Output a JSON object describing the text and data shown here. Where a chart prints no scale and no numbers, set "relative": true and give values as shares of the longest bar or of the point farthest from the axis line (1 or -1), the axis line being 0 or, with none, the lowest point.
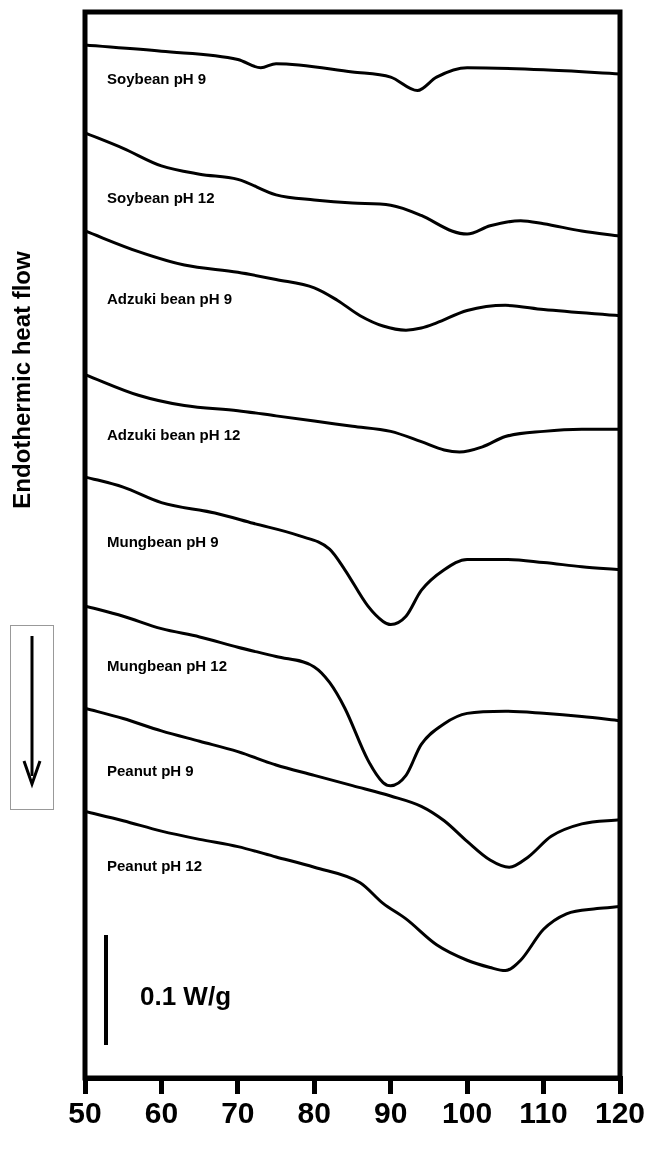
{
  "chart_data": {
    "type": "line",
    "ylabel": "Endothermic heat flow",
    "relative": true,
    "legend": false,
    "grid": false,
    "marker": "none",
    "xlim": [
      50,
      120
    ],
    "xticks": [
      50,
      60,
      70,
      80,
      90,
      100,
      110,
      120
    ],
    "annotations": [
      "0.1 W/g"
    ],
    "series": [
      {
        "name": "Soybean pH 9",
        "color": "#000000",
        "x": [
          50,
          60,
          70,
          73,
          75,
          85,
          90,
          93.5,
          96,
          100,
          110,
          120
        ],
        "values": [
          1.0,
          0.994,
          0.986,
          0.978,
          0.982,
          0.974,
          0.969,
          0.956,
          0.969,
          0.978,
          0.976,
          0.972
        ]
      },
      {
        "name": "Soybean pH 12",
        "color": "#000000",
        "x": [
          50,
          55,
          60,
          65,
          70,
          75,
          80,
          85,
          90,
          94,
          98,
          100,
          103,
          107,
          110,
          115,
          120
        ],
        "values": [
          0.915,
          0.9,
          0.883,
          0.875,
          0.87,
          0.855,
          0.85,
          0.847,
          0.845,
          0.835,
          0.82,
          0.817,
          0.825,
          0.83,
          0.827,
          0.82,
          0.815
        ]
      },
      {
        "name": "Adzuki bean pH 9",
        "color": "#000000",
        "x": [
          50,
          57,
          63,
          70,
          75,
          80,
          83,
          86,
          89,
          92,
          94,
          96,
          100,
          105,
          110,
          120
        ],
        "values": [
          0.82,
          0.8,
          0.787,
          0.78,
          0.773,
          0.765,
          0.753,
          0.738,
          0.728,
          0.724,
          0.726,
          0.731,
          0.743,
          0.748,
          0.744,
          0.738
        ]
      },
      {
        "name": "Adzuki bean pH 12",
        "color": "#000000",
        "x": [
          50,
          57,
          63,
          70,
          75,
          80,
          85,
          90,
          94,
          97,
          99,
          102,
          105,
          110,
          115,
          120
        ],
        "values": [
          0.681,
          0.661,
          0.651,
          0.646,
          0.641,
          0.636,
          0.631,
          0.626,
          0.616,
          0.608,
          0.606,
          0.611,
          0.621,
          0.626,
          0.628,
          0.628
        ]
      },
      {
        "name": "Mungbean pH 9",
        "color": "#000000",
        "x": [
          50,
          55,
          60,
          67,
          72,
          78,
          82,
          84,
          87,
          89,
          90,
          92,
          94,
          97,
          100,
          105,
          110,
          115,
          120
        ],
        "values": [
          0.582,
          0.572,
          0.557,
          0.547,
          0.537,
          0.525,
          0.512,
          0.492,
          0.457,
          0.442,
          0.439,
          0.447,
          0.472,
          0.492,
          0.502,
          0.502,
          0.499,
          0.495,
          0.492
        ]
      },
      {
        "name": "Mungbean pH 12",
        "color": "#000000",
        "x": [
          50,
          55,
          60,
          65,
          70,
          75,
          80,
          82,
          84,
          87,
          89,
          90,
          92,
          94,
          97,
          100,
          105,
          110,
          115,
          120
        ],
        "values": [
          0.457,
          0.447,
          0.435,
          0.427,
          0.417,
          0.408,
          0.398,
          0.383,
          0.358,
          0.308,
          0.286,
          0.283,
          0.293,
          0.323,
          0.343,
          0.353,
          0.355,
          0.353,
          0.35,
          0.346
        ]
      },
      {
        "name": "Peanut pH 9",
        "color": "#000000",
        "x": [
          50,
          55,
          60,
          65,
          70,
          75,
          80,
          85,
          90,
          94,
          97,
          100,
          103,
          105.5,
          108,
          111,
          115,
          120
        ],
        "values": [
          0.358,
          0.348,
          0.336,
          0.326,
          0.316,
          0.303,
          0.293,
          0.283,
          0.273,
          0.263,
          0.249,
          0.229,
          0.211,
          0.204,
          0.214,
          0.234,
          0.246,
          0.25
        ]
      },
      {
        "name": "Peanut pH 12",
        "color": "#000000",
        "x": [
          50,
          55,
          60,
          65,
          70,
          75,
          80,
          86,
          89,
          92,
          96,
          100,
          103,
          105,
          107,
          110,
          113,
          117,
          120
        ],
        "values": [
          0.258,
          0.249,
          0.239,
          0.231,
          0.224,
          0.214,
          0.204,
          0.189,
          0.169,
          0.154,
          0.129,
          0.114,
          0.107,
          0.104,
          0.114,
          0.144,
          0.159,
          0.164,
          0.166
        ]
      }
    ]
  }
}
